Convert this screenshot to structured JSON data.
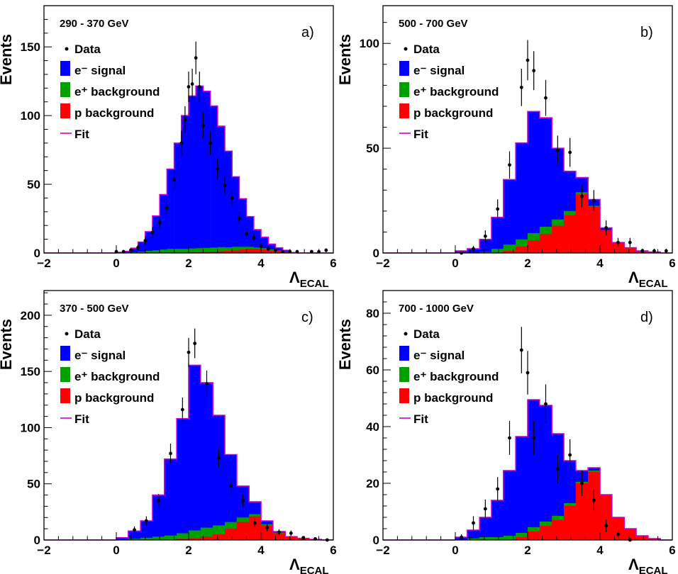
{
  "chart_data": [
    {
      "type": "bar",
      "panel_tag": "a)",
      "range_label": "290 - 370 GeV",
      "ylabel": "Events",
      "xlabel": "Λ",
      "xlabel_sub": "ECAL",
      "xlim": [
        -2,
        6
      ],
      "ylim": [
        0,
        180
      ],
      "xticks": [
        -2,
        0,
        2,
        4,
        6
      ],
      "xtick_labels": [
        "−2",
        "0",
        "2",
        "4",
        "6"
      ],
      "yticks": [
        0,
        50,
        100,
        150
      ],
      "ytick_labels": [
        "0",
        "50",
        "100",
        "150"
      ],
      "bin_edges": [
        0,
        0.2,
        0.4,
        0.6,
        0.8,
        1.0,
        1.2,
        1.4,
        1.6,
        1.8,
        2.0,
        2.2,
        2.4,
        2.6,
        2.8,
        3.0,
        3.2,
        3.4,
        3.6,
        3.8,
        4.0,
        4.2,
        4.4,
        4.6,
        4.8,
        5.0
      ],
      "series": [
        {
          "name": "e⁻ signal",
          "color": "#0000ff",
          "values": [
            0.5,
            1,
            3,
            7,
            14,
            25,
            40,
            58,
            77,
            97,
            111,
            118,
            114,
            103,
            88,
            70,
            51,
            35,
            22,
            13,
            8,
            4,
            2,
            1,
            0
          ]
        },
        {
          "name": "e⁺ background",
          "color": "#00a000",
          "values": [
            0,
            0.2,
            0.5,
            1,
            1.5,
            2,
            2.5,
            3,
            3,
            3,
            3,
            3,
            3,
            3,
            3,
            2.5,
            2.5,
            2,
            1.5,
            1,
            1,
            0.5,
            0.3,
            0.2,
            0
          ]
        },
        {
          "name": "p background",
          "color": "#ff0000",
          "values": [
            0,
            0,
            0,
            0,
            0,
            0,
            0,
            0,
            0,
            0,
            0.3,
            0.5,
            0.7,
            1,
            1.3,
            1.6,
            2,
            2.5,
            3,
            3,
            2.5,
            2,
            1.5,
            0.8,
            0.3
          ]
        }
      ],
      "data_points": {
        "name": "Data",
        "x": [
          0,
          0.2,
          0.4,
          0.6,
          0.8,
          1.0,
          1.2,
          1.4,
          1.6,
          1.8,
          1.9,
          2.0,
          2.1,
          2.2,
          2.3,
          2.4,
          2.6,
          2.8,
          3.0,
          3.2,
          3.4,
          3.6,
          3.8,
          4.0,
          4.2,
          4.4,
          4.6,
          4.8,
          5.0,
          5.4,
          5.6,
          5.8
        ],
        "y": [
          1,
          1,
          2,
          4,
          9,
          15,
          22,
          33,
          53,
          80,
          97,
          121,
          123,
          142,
          121,
          93,
          80,
          61,
          49,
          40,
          25,
          14,
          11,
          5,
          3,
          2,
          1,
          1,
          1,
          1,
          1,
          2
        ],
        "yerr": [
          1,
          1,
          1.4,
          2,
          3,
          3.9,
          4.7,
          5.7,
          7.3,
          8.9,
          9.8,
          11,
          11.1,
          11.9,
          11,
          9.6,
          8.9,
          7.8,
          7,
          6.3,
          5,
          3.7,
          3.3,
          2.2,
          1.7,
          1.4,
          1,
          1,
          1,
          1,
          1,
          1.4
        ]
      },
      "legend": [
        "Data",
        "e⁻ signal",
        "e⁺ background",
        "p background",
        "Fit"
      ],
      "legend_position": "top-left"
    },
    {
      "type": "bar",
      "panel_tag": "b)",
      "range_label": "500 - 700 GeV",
      "ylabel": "Events",
      "xlabel": "Λ",
      "xlabel_sub": "ECAL",
      "xlim": [
        -2,
        6
      ],
      "ylim": [
        0,
        118
      ],
      "xticks": [
        -2,
        0,
        2,
        4,
        6
      ],
      "xtick_labels": [
        "−2",
        "0",
        "2",
        "4",
        "6"
      ],
      "yticks": [
        0,
        50,
        100
      ],
      "ytick_labels": [
        "0",
        "50",
        "100"
      ],
      "bin_edges": [
        0,
        0.33,
        0.67,
        1.0,
        1.33,
        1.67,
        2.0,
        2.33,
        2.67,
        3.0,
        3.33,
        3.67,
        4.0,
        4.33,
        4.67,
        5.0,
        5.33,
        5.67,
        6.0
      ],
      "series": [
        {
          "name": "e⁻ signal",
          "color": "#0000ff",
          "values": [
            1,
            2,
            6,
            15,
            31,
            46,
            58,
            52,
            34,
            19,
            7,
            3,
            1,
            0,
            0,
            0,
            0,
            0
          ]
        },
        {
          "name": "e⁺ background",
          "color": "#00a000",
          "values": [
            0,
            0,
            0.5,
            2,
            3,
            3.5,
            3.5,
            3.5,
            3,
            2,
            1,
            0.5,
            0,
            0,
            0,
            0,
            0,
            0
          ]
        },
        {
          "name": "p background",
          "color": "#ff0000",
          "values": [
            0,
            0,
            0,
            0,
            1,
            3,
            6,
            9,
            13,
            18,
            28,
            22,
            11,
            5,
            2.5,
            1,
            0.5,
            0
          ]
        }
      ],
      "data_points": {
        "name": "Data",
        "x": [
          0.17,
          0.5,
          0.83,
          1.17,
          1.5,
          1.83,
          2.0,
          2.17,
          2.5,
          2.83,
          3.17,
          3.5,
          3.83,
          4.17,
          4.5,
          4.83,
          5.17,
          5.5,
          5.83
        ],
        "y": [
          0,
          2,
          8,
          21,
          42,
          79,
          92,
          87,
          74,
          49,
          48,
          27,
          25,
          12,
          5,
          5,
          1,
          1,
          1
        ],
        "yerr": [
          0,
          1.4,
          2.8,
          4.6,
          6.5,
          8.9,
          9.6,
          9.3,
          8.6,
          7,
          6.9,
          5.2,
          5,
          3.5,
          2.2,
          2.2,
          1,
          1,
          1
        ]
      },
      "legend": [
        "Data",
        "e⁻ signal",
        "e⁺ background",
        "p background",
        "Fit"
      ],
      "legend_position": "top-left"
    },
    {
      "type": "bar",
      "panel_tag": "c)",
      "range_label": "370 - 500 GeV",
      "ylabel": "Events",
      "xlabel": "Λ",
      "xlabel_sub": "ECAL",
      "xlim": [
        -2,
        6
      ],
      "ylim": [
        0,
        222
      ],
      "xticks": [
        -2,
        0,
        2,
        4,
        6
      ],
      "xtick_labels": [
        "−2",
        "0",
        "2",
        "4",
        "6"
      ],
      "yticks": [
        0,
        50,
        100,
        150,
        200
      ],
      "ytick_labels": [
        "0",
        "50",
        "100",
        "150",
        "200"
      ],
      "bin_edges": [
        0,
        0.33,
        0.67,
        1.0,
        1.33,
        1.67,
        2.0,
        2.33,
        2.67,
        3.0,
        3.33,
        3.67,
        4.0,
        4.33,
        4.67,
        5.0,
        5.33,
        5.67,
        6.0
      ],
      "series": [
        {
          "name": "e⁻ signal",
          "color": "#0000ff",
          "values": [
            2,
            7,
            15,
            37,
            68,
            102,
            147,
            129,
            98,
            60,
            28,
            11,
            3,
            1,
            0,
            0,
            0,
            0
          ]
        },
        {
          "name": "e⁺ background",
          "color": "#00a000",
          "values": [
            0,
            1,
            2,
            3,
            4,
            5,
            7,
            8,
            8,
            6,
            4,
            2,
            1,
            0.5,
            0,
            0,
            0,
            0
          ]
        },
        {
          "name": "p background",
          "color": "#ff0000",
          "values": [
            0,
            0,
            0,
            0,
            0,
            1,
            1.5,
            3,
            5,
            10,
            16,
            21,
            13,
            6,
            3,
            1.5,
            0.5,
            0
          ]
        }
      ],
      "data_points": {
        "name": "Data",
        "x": [
          0.5,
          0.83,
          1.17,
          1.5,
          1.83,
          2.0,
          2.17,
          2.5,
          2.83,
          3.17,
          3.5,
          3.83,
          4.17,
          4.5,
          4.83,
          5.17,
          5.5,
          5.83
        ],
        "y": [
          9,
          17,
          35,
          77,
          116,
          167,
          175,
          139,
          73,
          48,
          35,
          15,
          11,
          7,
          6,
          2,
          1,
          0
        ],
        "yerr": [
          3,
          4.1,
          5.9,
          8.8,
          10.8,
          12.9,
          13.2,
          11.8,
          8.5,
          6.9,
          5.9,
          3.9,
          3.3,
          2.6,
          2.4,
          1.4,
          1,
          0
        ]
      },
      "legend": [
        "Data",
        "e⁻ signal",
        "e⁺ background",
        "p background",
        "Fit"
      ],
      "legend_position": "top-left"
    },
    {
      "type": "bar",
      "panel_tag": "d)",
      "range_label": "700 - 1000 GeV",
      "ylabel": "Events",
      "xlabel": "Λ",
      "xlabel_sub": "ECAL",
      "xlim": [
        -2,
        6
      ],
      "ylim": [
        0,
        88
      ],
      "xticks": [
        -2,
        0,
        2,
        4,
        6
      ],
      "xtick_labels": [
        "−2",
        "0",
        "2",
        "4",
        "6"
      ],
      "yticks": [
        0,
        20,
        40,
        60,
        80
      ],
      "ytick_labels": [
        "0",
        "20",
        "40",
        "60",
        "80"
      ],
      "bin_edges": [
        0,
        0.33,
        0.67,
        1.0,
        1.33,
        1.67,
        2.0,
        2.33,
        2.67,
        3.0,
        3.33,
        3.67,
        4.0,
        4.33,
        4.67,
        5.0,
        5.33,
        5.67,
        6.0
      ],
      "series": [
        {
          "name": "e⁻ signal",
          "color": "#0000ff",
          "values": [
            1,
            3,
            7,
            13,
            23,
            34,
            45,
            41,
            29,
            15,
            4,
            1,
            0,
            0,
            0,
            0,
            0,
            0
          ]
        },
        {
          "name": "e⁺ background",
          "color": "#00a000",
          "values": [
            0,
            0.5,
            1,
            1,
            1.5,
            1.5,
            1.5,
            1.5,
            1.5,
            1,
            0.5,
            0.5,
            0,
            0,
            0,
            0,
            0,
            0
          ]
        },
        {
          "name": "p background",
          "color": "#ff0000",
          "values": [
            0,
            0,
            0,
            0,
            0,
            1,
            3,
            5,
            7,
            12,
            20,
            24,
            16,
            8,
            4,
            1.5,
            0.5,
            0
          ]
        }
      ],
      "data_points": {
        "name": "Data",
        "x": [
          0.17,
          0.5,
          0.83,
          1.17,
          1.5,
          1.83,
          2.0,
          2.17,
          2.5,
          2.83,
          3.17,
          3.5,
          3.83,
          4.17,
          4.5,
          4.83
        ],
        "y": [
          1,
          6,
          11,
          18,
          36,
          67,
          59,
          36,
          48,
          25,
          30,
          20,
          14,
          5,
          2,
          0
        ],
        "yerr": [
          1,
          2.4,
          3.3,
          4.2,
          6,
          8.2,
          7.7,
          6,
          6.9,
          5,
          5.5,
          4.5,
          3.7,
          2.2,
          1.4,
          0
        ]
      },
      "legend": [
        "Data",
        "e⁻ signal",
        "e⁺ background",
        "p background",
        "Fit"
      ],
      "legend_position": "top-left"
    }
  ]
}
